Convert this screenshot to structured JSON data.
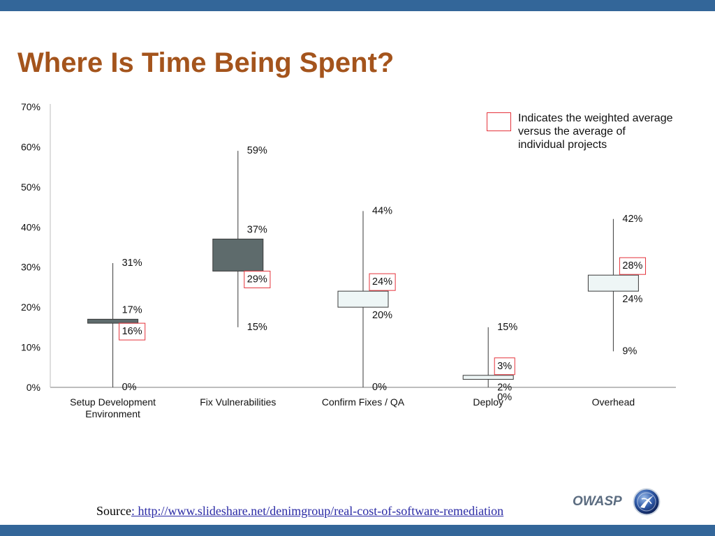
{
  "slide": {
    "title": "Where Is Time Being Spent?",
    "source_label": "Source",
    "source_link_text": ": http://www.slideshare.net/denimgroup/real-cost-of-software-remediation",
    "logo_text": "OWASP"
  },
  "legend": {
    "lines": [
      "Indicates the weighted average",
      "versus the average of",
      "individual projects"
    ]
  },
  "icons": {
    "logo": "owasp-globe-icon",
    "legend_marker": "red-outline-box"
  },
  "colors": {
    "bar_blue": "#336699",
    "title": "#a4541c",
    "highlight_red": "#e5333b",
    "box_down": "#5e6b6c",
    "box_up": "#eef6f6",
    "whisker": "#3a3a3a",
    "axis": "#bdbdbd",
    "link": "#2a2aa5",
    "logo_text": "#5b6c80"
  },
  "chart_data": {
    "type": "bar",
    "categories": [
      "Setup Development Environment",
      "Fix Vulnerabilities",
      "Confirm Fixes / QA",
      "Deploy",
      "Overhead"
    ],
    "min": [
      0,
      15,
      0,
      0,
      9
    ],
    "max": [
      31,
      59,
      44,
      15,
      42
    ],
    "weighted_average": [
      16,
      29,
      24,
      3,
      28
    ],
    "average_of_individual_projects": [
      17,
      37,
      20,
      2,
      24
    ],
    "value_suffix": "%",
    "ylim": [
      0,
      70
    ],
    "yticks": [
      0,
      10,
      20,
      30,
      40,
      50,
      60,
      70
    ],
    "ytick_labels": [
      "0%",
      "10%",
      "20%",
      "30%",
      "40%",
      "50%",
      "60%",
      "70%"
    ],
    "grid": false,
    "legend_position": "top-right"
  }
}
